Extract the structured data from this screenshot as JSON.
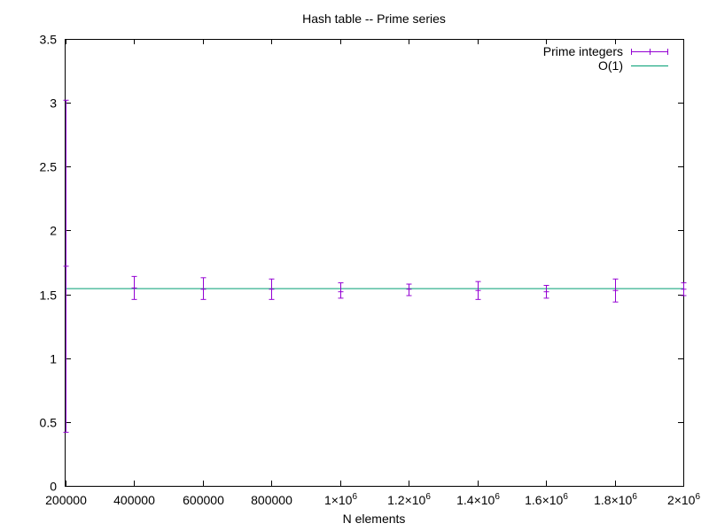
{
  "chart_data": {
    "type": "scatter",
    "title": "Hash table -- Prime series",
    "xlabel": "N elements",
    "ylabel": "",
    "xlim": [
      200000,
      2000000
    ],
    "ylim": [
      0,
      3.5
    ],
    "grid": false,
    "legend_position": "top-right",
    "x_ticks": [
      {
        "value": 200000,
        "label": "200000"
      },
      {
        "value": 400000,
        "label": "400000"
      },
      {
        "value": 600000,
        "label": "600000"
      },
      {
        "value": 800000,
        "label": "800000"
      },
      {
        "value": 1000000,
        "label": "1×10",
        "sup": "6"
      },
      {
        "value": 1200000,
        "label": "1.2×10",
        "sup": "6"
      },
      {
        "value": 1400000,
        "label": "1.4×10",
        "sup": "6"
      },
      {
        "value": 1600000,
        "label": "1.6×10",
        "sup": "6"
      },
      {
        "value": 1800000,
        "label": "1.8×10",
        "sup": "6"
      },
      {
        "value": 2000000,
        "label": "2×10",
        "sup": "6"
      }
    ],
    "y_ticks": [
      {
        "value": 0,
        "label": "0"
      },
      {
        "value": 0.5,
        "label": "0.5"
      },
      {
        "value": 1,
        "label": "1"
      },
      {
        "value": 1.5,
        "label": "1.5"
      },
      {
        "value": 2,
        "label": "2"
      },
      {
        "value": 2.5,
        "label": "2.5"
      },
      {
        "value": 3,
        "label": "3"
      },
      {
        "value": 3.5,
        "label": "3.5"
      }
    ],
    "series": [
      {
        "name": "Prime integers",
        "kind": "errorbars",
        "color": "#9400d3",
        "points": [
          {
            "x": 200000,
            "y": 1.72,
            "ylow": 0.42,
            "yhigh": 3.02
          },
          {
            "x": 400000,
            "y": 1.55,
            "ylow": 1.46,
            "yhigh": 1.64
          },
          {
            "x": 600000,
            "y": 1.54,
            "ylow": 1.46,
            "yhigh": 1.63
          },
          {
            "x": 800000,
            "y": 1.54,
            "ylow": 1.46,
            "yhigh": 1.62
          },
          {
            "x": 1000000,
            "y": 1.52,
            "ylow": 1.47,
            "yhigh": 1.59
          },
          {
            "x": 1200000,
            "y": 1.54,
            "ylow": 1.49,
            "yhigh": 1.58
          },
          {
            "x": 1400000,
            "y": 1.53,
            "ylow": 1.46,
            "yhigh": 1.6
          },
          {
            "x": 1600000,
            "y": 1.52,
            "ylow": 1.47,
            "yhigh": 1.57
          },
          {
            "x": 1800000,
            "y": 1.53,
            "ylow": 1.44,
            "yhigh": 1.62
          },
          {
            "x": 2000000,
            "y": 1.54,
            "ylow": 1.49,
            "yhigh": 1.59
          }
        ]
      },
      {
        "name": "O(1)",
        "kind": "line",
        "color": "#009e73",
        "y": 1.545
      }
    ]
  }
}
